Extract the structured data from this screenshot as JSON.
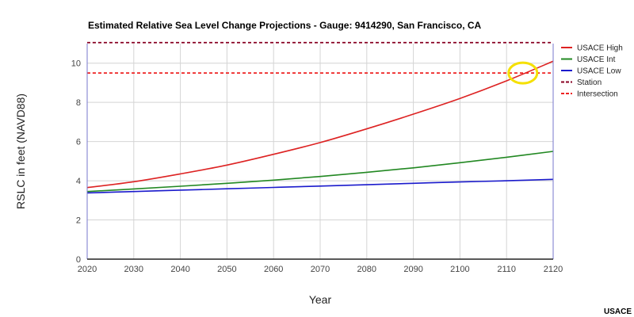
{
  "chart_data": {
    "type": "line",
    "title": "Estimated Relative Sea Level Change Projections - Gauge: 9414290, San Francisco, CA",
    "xlabel": "Year",
    "ylabel": "RSLC in feet (NAVD88)",
    "xlim": [
      2020,
      2120
    ],
    "ylim": [
      0,
      11
    ],
    "x_ticks": [
      2020,
      2030,
      2040,
      2050,
      2060,
      2070,
      2080,
      2090,
      2100,
      2110,
      2120
    ],
    "y_ticks": [
      0,
      2,
      4,
      6,
      8,
      10
    ],
    "grid": true,
    "legend_position": "right",
    "x": [
      2020,
      2030,
      2040,
      2050,
      2060,
      2070,
      2080,
      2090,
      2100,
      2110,
      2120
    ],
    "series": [
      {
        "name": "USACE High",
        "color": "#dd2222",
        "dash": "solid",
        "values": [
          3.65,
          3.95,
          4.35,
          4.8,
          5.35,
          5.95,
          6.65,
          7.4,
          8.2,
          9.1,
          10.1
        ]
      },
      {
        "name": "USACE Int",
        "color": "#228822",
        "dash": "solid",
        "values": [
          3.45,
          3.58,
          3.72,
          3.87,
          4.03,
          4.22,
          4.43,
          4.66,
          4.92,
          5.2,
          5.5
        ]
      },
      {
        "name": "USACE Low",
        "color": "#1a1acc",
        "dash": "solid",
        "values": [
          3.38,
          3.45,
          3.52,
          3.59,
          3.66,
          3.73,
          3.8,
          3.87,
          3.94,
          4.0,
          4.07
        ]
      },
      {
        "name": "Station",
        "color": "#880022",
        "dash": "dashed",
        "values": [
          11.05,
          11.05,
          11.05,
          11.05,
          11.05,
          11.05,
          11.05,
          11.05,
          11.05,
          11.05,
          11.05
        ]
      },
      {
        "name": "Intersection",
        "color": "#ee2222",
        "dash": "dashed",
        "values": [
          9.5,
          9.5,
          9.5,
          9.5,
          9.5,
          9.5,
          9.5,
          9.5,
          9.5,
          9.5,
          9.5
        ]
      }
    ],
    "highlight": {
      "x": 2113.5,
      "y": 9.5,
      "color": "#f5e000"
    }
  },
  "source_label": "USACE"
}
